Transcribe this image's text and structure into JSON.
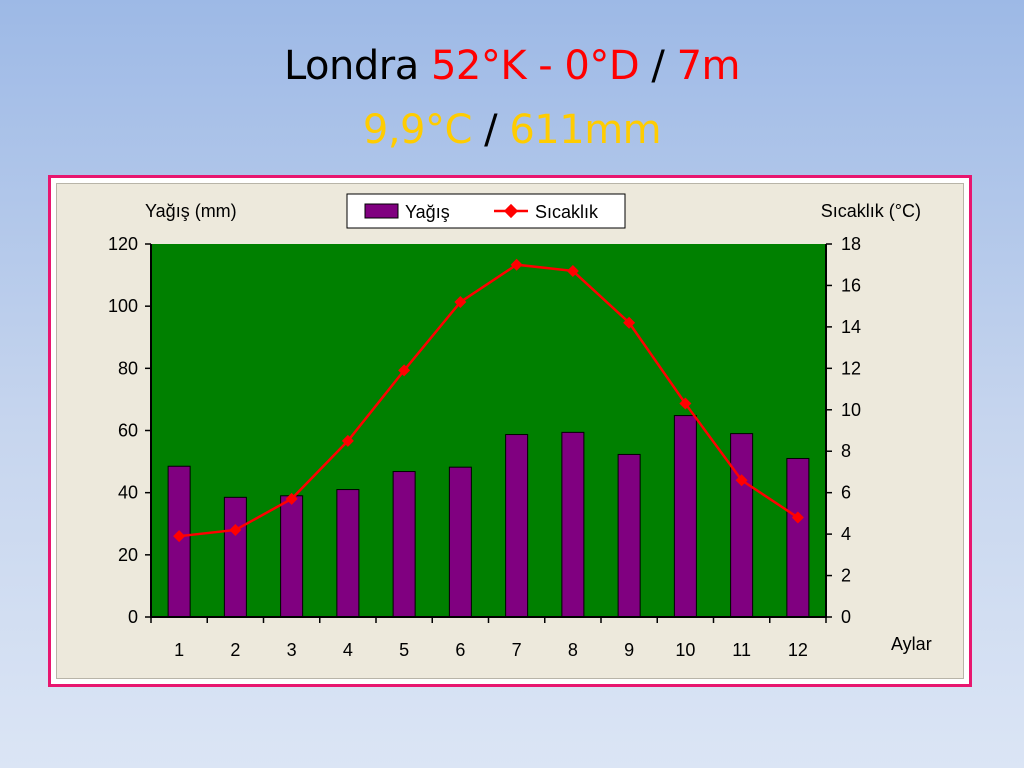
{
  "slide": {
    "title_city": "Londra",
    "title_coords": "52°K - 0°D",
    "title_sep1": "/",
    "title_elev": "7m",
    "subtitle_temp": "9,9°C",
    "subtitle_sep": "/",
    "subtitle_rain": "611mm"
  },
  "colors": {
    "plot_bg": "#008000",
    "bar": "#800080",
    "line": "#ff0000",
    "frame": "#e8166f"
  },
  "chart_data": {
    "type": "bar",
    "categories": [
      "1",
      "2",
      "3",
      "4",
      "5",
      "6",
      "7",
      "8",
      "9",
      "10",
      "11",
      "12"
    ],
    "xlabel": "Aylar",
    "ylabel": "Yağış (mm)",
    "y2label": "Sıcaklık (°C)",
    "ylim": [
      0,
      120
    ],
    "yticks": [
      "0",
      "20",
      "40",
      "60",
      "80",
      "100",
      "120"
    ],
    "y2lim": [
      0,
      18
    ],
    "y2ticks": [
      "0",
      "2",
      "4",
      "6",
      "8",
      "10",
      "12",
      "14",
      "16",
      "18"
    ],
    "legend": {
      "placement": "top-center",
      "bar_label": "Yağış",
      "line_label": "Sıcaklık"
    },
    "series": [
      {
        "name": "Yağış",
        "type": "bar",
        "axis": "left",
        "values": [
          48.5,
          38.5,
          39,
          41,
          46.8,
          48.2,
          58.7,
          59.4,
          52.3,
          64.8,
          59,
          51
        ]
      },
      {
        "name": "Sıcaklık",
        "type": "line",
        "axis": "right",
        "values": [
          3.9,
          4.2,
          5.7,
          8.5,
          11.9,
          15.2,
          17,
          16.7,
          14.2,
          10.3,
          6.6,
          4.8
        ]
      }
    ]
  }
}
